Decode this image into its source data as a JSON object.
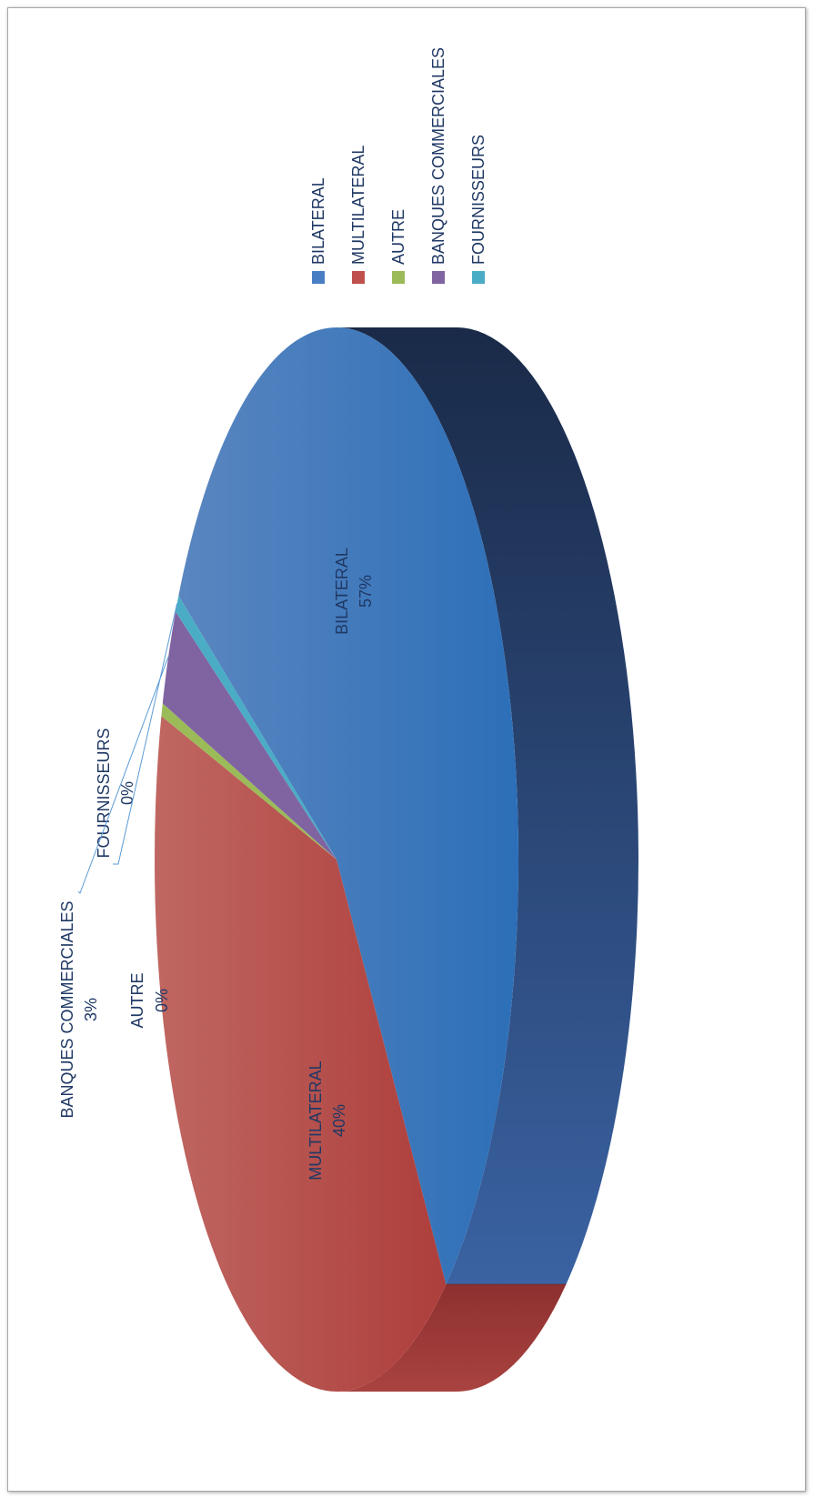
{
  "chart_data": {
    "type": "pie",
    "orientation": "rotated-90",
    "style": "3d",
    "categories": [
      "BILATERAL",
      "MULTILATERAL",
      "AUTRE",
      "BANQUES COMMERCIALES",
      "FOURNISSEURS"
    ],
    "values": [
      57,
      40,
      0,
      3,
      0
    ],
    "percent_labels": [
      "57%",
      "40%",
      "0%",
      "3%",
      "0%"
    ],
    "colors": [
      "#4a7ec4",
      "#c0504d",
      "#9bbb59",
      "#8064a2",
      "#4bacc6"
    ],
    "legend": {
      "placement": "top-right",
      "items": [
        "BILATERAL",
        "MULTILATERAL",
        "AUTRE",
        "BANQUES COMMERCIALES",
        "FOURNISSEURS"
      ]
    },
    "label_color": "#1f3864"
  }
}
